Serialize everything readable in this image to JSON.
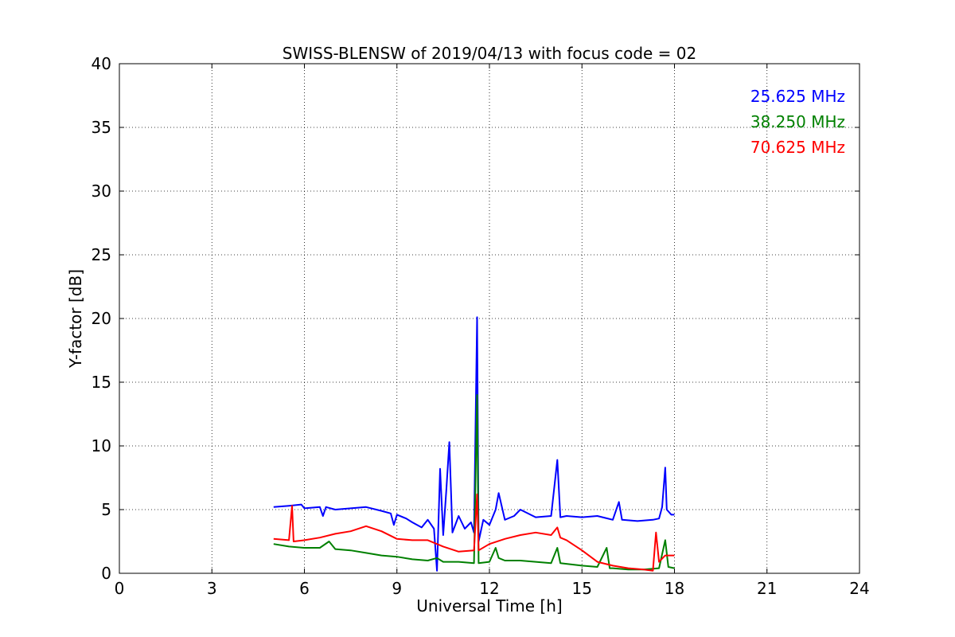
{
  "chart_data": {
    "type": "line",
    "title": "SWISS-BLENSW of 2019/04/13 with focus code = 02",
    "xlabel": "Universal Time [h]",
    "ylabel": "Y-factor [dB]",
    "xlim": [
      0,
      24
    ],
    "ylim": [
      0,
      40
    ],
    "xticks": [
      0,
      3,
      6,
      9,
      12,
      15,
      18,
      21,
      24
    ],
    "yticks": [
      0,
      5,
      10,
      15,
      20,
      25,
      30,
      35,
      40
    ],
    "grid": true,
    "legend_position": "top-right",
    "series": [
      {
        "name": "25.625 MHz",
        "color": "#0000ff",
        "points": [
          [
            5.0,
            5.2
          ],
          [
            5.5,
            5.3
          ],
          [
            5.9,
            5.4
          ],
          [
            6.0,
            5.1
          ],
          [
            6.5,
            5.2
          ],
          [
            6.6,
            4.5
          ],
          [
            6.7,
            5.2
          ],
          [
            7.0,
            5.0
          ],
          [
            7.5,
            5.1
          ],
          [
            8.0,
            5.2
          ],
          [
            8.5,
            4.9
          ],
          [
            8.8,
            4.7
          ],
          [
            8.9,
            3.8
          ],
          [
            9.0,
            4.6
          ],
          [
            9.3,
            4.3
          ],
          [
            9.5,
            4.0
          ],
          [
            9.8,
            3.6
          ],
          [
            10.0,
            4.2
          ],
          [
            10.2,
            3.5
          ],
          [
            10.3,
            0.2
          ],
          [
            10.4,
            8.2
          ],
          [
            10.5,
            3.0
          ],
          [
            10.6,
            6.5
          ],
          [
            10.7,
            10.3
          ],
          [
            10.8,
            3.2
          ],
          [
            11.0,
            4.5
          ],
          [
            11.2,
            3.5
          ],
          [
            11.4,
            4.0
          ],
          [
            11.5,
            3.2
          ],
          [
            11.6,
            20.1
          ],
          [
            11.65,
            2.5
          ],
          [
            11.8,
            4.2
          ],
          [
            12.0,
            3.8
          ],
          [
            12.2,
            5.0
          ],
          [
            12.3,
            6.3
          ],
          [
            12.5,
            4.2
          ],
          [
            12.8,
            4.5
          ],
          [
            13.0,
            5.0
          ],
          [
            13.5,
            4.4
          ],
          [
            14.0,
            4.5
          ],
          [
            14.2,
            8.9
          ],
          [
            14.3,
            4.4
          ],
          [
            14.5,
            4.5
          ],
          [
            15.0,
            4.4
          ],
          [
            15.5,
            4.5
          ],
          [
            16.0,
            4.2
          ],
          [
            16.2,
            5.6
          ],
          [
            16.3,
            4.2
          ],
          [
            16.8,
            4.1
          ],
          [
            17.3,
            4.2
          ],
          [
            17.5,
            4.3
          ],
          [
            17.6,
            5.2
          ],
          [
            17.7,
            8.3
          ],
          [
            17.75,
            5.0
          ],
          [
            17.9,
            4.6
          ],
          [
            18.0,
            4.6
          ]
        ]
      },
      {
        "name": "38.250 MHz",
        "color": "#008000",
        "points": [
          [
            5.0,
            2.3
          ],
          [
            5.5,
            2.1
          ],
          [
            6.0,
            2.0
          ],
          [
            6.5,
            2.0
          ],
          [
            6.8,
            2.5
          ],
          [
            7.0,
            1.9
          ],
          [
            7.5,
            1.8
          ],
          [
            8.0,
            1.6
          ],
          [
            8.5,
            1.4
          ],
          [
            9.0,
            1.3
          ],
          [
            9.5,
            1.1
          ],
          [
            10.0,
            1.0
          ],
          [
            10.3,
            1.2
          ],
          [
            10.5,
            0.9
          ],
          [
            11.0,
            0.9
          ],
          [
            11.5,
            0.8
          ],
          [
            11.6,
            14.0
          ],
          [
            11.65,
            0.8
          ],
          [
            12.0,
            0.9
          ],
          [
            12.2,
            2.0
          ],
          [
            12.3,
            1.2
          ],
          [
            12.5,
            1.0
          ],
          [
            13.0,
            1.0
          ],
          [
            13.5,
            0.9
          ],
          [
            14.0,
            0.8
          ],
          [
            14.2,
            2.0
          ],
          [
            14.3,
            0.8
          ],
          [
            15.0,
            0.6
          ],
          [
            15.5,
            0.5
          ],
          [
            15.8,
            2.0
          ],
          [
            15.9,
            0.4
          ],
          [
            16.0,
            0.4
          ],
          [
            16.5,
            0.3
          ],
          [
            17.0,
            0.3
          ],
          [
            17.5,
            0.4
          ],
          [
            17.7,
            2.6
          ],
          [
            17.8,
            0.5
          ],
          [
            18.0,
            0.4
          ]
        ]
      },
      {
        "name": "70.625 MHz",
        "color": "#ff0000",
        "points": [
          [
            5.0,
            2.7
          ],
          [
            5.5,
            2.6
          ],
          [
            5.6,
            5.3
          ],
          [
            5.65,
            2.5
          ],
          [
            6.0,
            2.6
          ],
          [
            6.5,
            2.8
          ],
          [
            7.0,
            3.1
          ],
          [
            7.5,
            3.3
          ],
          [
            8.0,
            3.7
          ],
          [
            8.5,
            3.3
          ],
          [
            9.0,
            2.7
          ],
          [
            9.5,
            2.6
          ],
          [
            10.0,
            2.6
          ],
          [
            10.5,
            2.1
          ],
          [
            11.0,
            1.7
          ],
          [
            11.5,
            1.8
          ],
          [
            11.6,
            6.2
          ],
          [
            11.65,
            1.8
          ],
          [
            12.0,
            2.3
          ],
          [
            12.5,
            2.7
          ],
          [
            13.0,
            3.0
          ],
          [
            13.5,
            3.2
          ],
          [
            14.0,
            3.0
          ],
          [
            14.2,
            3.6
          ],
          [
            14.3,
            2.8
          ],
          [
            14.5,
            2.6
          ],
          [
            15.0,
            1.8
          ],
          [
            15.5,
            0.9
          ],
          [
            16.0,
            0.6
          ],
          [
            16.5,
            0.4
          ],
          [
            17.0,
            0.3
          ],
          [
            17.3,
            0.2
          ],
          [
            17.4,
            3.2
          ],
          [
            17.5,
            0.9
          ],
          [
            17.7,
            1.4
          ],
          [
            18.0,
            1.4
          ]
        ]
      }
    ]
  }
}
